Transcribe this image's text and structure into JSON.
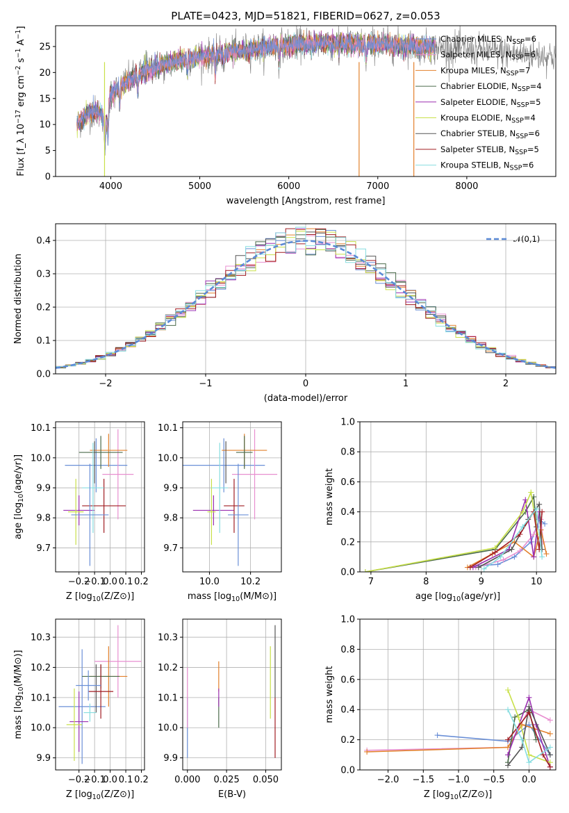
{
  "figure": {
    "title": "PLATE=0423, MJD=51821, FIBERID=0627, z=0.053"
  },
  "colors": [
    "#6a8fd7",
    "#e88fd0",
    "#e2802b",
    "#4b6b4b",
    "#9a2fb0",
    "#c8e048",
    "#555555",
    "#a01c22",
    "#86dde0"
  ],
  "chart_data": [
    {
      "id": "spectrum",
      "type": "line",
      "xlabel": "wavelength [Angstrom, rest frame]",
      "ylabel": "Flux [f_λ 10^-17 erg cm^-2 s^-1 A^-1]",
      "xlim": [
        3380,
        9000
      ],
      "ylim": [
        0,
        29
      ],
      "xticks": [
        4000,
        5000,
        6000,
        7000,
        8000
      ],
      "yticks": [
        0,
        5,
        10,
        15,
        20,
        25
      ],
      "grid": false,
      "legend_position": "right",
      "series": [
        {
          "name": "Chabrier MILES, N_SSP=6"
        },
        {
          "name": "Salpeter MILES, N_SSP=6"
        },
        {
          "name": "Kroupa MILES, N_SSP=7"
        },
        {
          "name": "Chabrier ELODIE, N_SSP=4"
        },
        {
          "name": "Salpeter ELODIE, N_SSP=5"
        },
        {
          "name": "Kroupa ELODIE, N_SSP=4"
        },
        {
          "name": "Chabrier STELIB, N_SSP=6"
        },
        {
          "name": "Salpeter STELIB, N_SSP=5"
        },
        {
          "name": "Kroupa STELIB, N_SSP=6"
        }
      ],
      "continuum": {
        "x": [
          3620,
          3700,
          3800,
          3900,
          3950,
          4000,
          4100,
          4200,
          4300,
          4400,
          4500,
          4600,
          4700,
          4800,
          4900,
          5000,
          5200,
          5400,
          5600,
          5800,
          6000,
          6200,
          6400,
          6600,
          6800,
          7000,
          7200,
          7400,
          7600,
          7800,
          8000,
          8300,
          8600,
          9000
        ],
        "y": [
          10,
          11.5,
          12.5,
          12,
          10.5,
          16,
          17,
          18.5,
          19.5,
          20.5,
          21,
          21.5,
          22,
          22.5,
          22.8,
          23,
          23.5,
          24,
          24.5,
          25,
          25.3,
          25.5,
          25.6,
          25.5,
          25.4,
          25.5,
          25.2,
          25,
          24.8,
          24.6,
          24.4,
          24.0,
          23.6,
          23.2
        ]
      }
    },
    {
      "id": "residuals",
      "type": "histogram",
      "xlabel": "(data-model)/error",
      "ylabel": "Normed distribution",
      "xlim": [
        -2.5,
        2.5
      ],
      "ylim": [
        0,
        0.45
      ],
      "xticks": [
        -2,
        -1,
        0,
        1,
        2
      ],
      "yticks": [
        0.0,
        0.1,
        0.2,
        0.3,
        0.4
      ],
      "grid": true,
      "legend": "𝒩(0,1)",
      "legend_position": "top-right",
      "bin_width": 0.1
    },
    {
      "id": "age_vs_Z",
      "type": "scatter",
      "xlabel": "Z [log10(Z/Z⊙)]",
      "ylabel": "age  [log10(age/yr)]",
      "xlim": [
        -0.35,
        0.22
      ],
      "ylim": [
        9.62,
        10.12
      ],
      "xticks": [
        -0.2,
        -0.1,
        0.0,
        0.1,
        0.2
      ],
      "yticks": [
        9.7,
        9.8,
        9.9,
        10.0,
        10.1
      ],
      "grid": true,
      "points": [
        {
          "x": -0.09,
          "y": 9.975,
          "xerr": 0.2,
          "yerr": 0.09
        },
        {
          "x": 0.05,
          "y": 9.945,
          "xerr": 0.1,
          "yerr": 0.15
        },
        {
          "x": -0.01,
          "y": 10.025,
          "xerr": 0.12,
          "yerr": 0.055
        },
        {
          "x": -0.06,
          "y": 10.018,
          "xerr": 0.14,
          "yerr": 0.055
        },
        {
          "x": -0.2,
          "y": 9.825,
          "xerr": 0.1,
          "yerr": 0.05
        },
        {
          "x": -0.22,
          "y": 9.82,
          "xerr": 0.05,
          "yerr": 0.11
        },
        {
          "x": -0.1,
          "y": 9.985,
          "xerr": 0.0,
          "yerr": 0.07
        },
        {
          "x": -0.04,
          "y": 9.84,
          "xerr": 0.14,
          "yerr": 0.09
        },
        {
          "x": -0.11,
          "y": 9.9,
          "xerr": 0.07,
          "yerr": 0.15
        },
        {
          "x": -0.13,
          "y": 9.81,
          "xerr": 0.12,
          "yerr": 0.17
        }
      ]
    },
    {
      "id": "age_vs_mass",
      "type": "scatter",
      "xlabel": "mass [log10(M/M⊙)]",
      "xlim": [
        9.87,
        10.35
      ],
      "ylim": [
        9.62,
        10.12
      ],
      "xticks": [
        10.0,
        10.2
      ],
      "yticks": [
        9.7,
        9.8,
        9.9,
        10.0,
        10.1
      ],
      "grid": true,
      "points": [
        {
          "x": 10.07,
          "y": 9.975,
          "xerr": 0.2,
          "yerr": 0.09
        },
        {
          "x": 10.22,
          "y": 9.945,
          "xerr": 0.11,
          "yerr": 0.15
        },
        {
          "x": 10.17,
          "y": 10.025,
          "xerr": 0.11,
          "yerr": 0.055
        },
        {
          "x": 10.17,
          "y": 10.018,
          "xerr": 0.04,
          "yerr": 0.055
        },
        {
          "x": 10.02,
          "y": 9.825,
          "xerr": 0.1,
          "yerr": 0.05
        },
        {
          "x": 10.01,
          "y": 9.82,
          "xerr": 0.02,
          "yerr": 0.11
        },
        {
          "x": 10.08,
          "y": 9.985,
          "xerr": 0.0,
          "yerr": 0.07
        },
        {
          "x": 10.12,
          "y": 9.84,
          "xerr": 0.05,
          "yerr": 0.09
        },
        {
          "x": 10.05,
          "y": 9.9,
          "xerr": 0.04,
          "yerr": 0.15
        },
        {
          "x": 10.14,
          "y": 9.81,
          "xerr": 0.05,
          "yerr": 0.17
        }
      ]
    },
    {
      "id": "weight_vs_age",
      "type": "line",
      "xlabel": "age  [log10(age/yr)]",
      "ylabel": "mass weight",
      "xlim": [
        6.8,
        10.35
      ],
      "ylim": [
        0,
        1.0
      ],
      "xticks": [
        7,
        8,
        9,
        10
      ],
      "yticks": [
        0.0,
        0.2,
        0.4,
        0.6,
        0.8,
        1.0
      ],
      "grid": true,
      "series_points": [
        [
          [
            8.9,
            0.04
          ],
          [
            9.3,
            0.05
          ],
          [
            9.6,
            0.1
          ],
          [
            9.9,
            0.2
          ],
          [
            10.05,
            0.35
          ],
          [
            10.15,
            0.32
          ]
        ],
        [
          [
            8.9,
            0.03
          ],
          [
            9.4,
            0.08
          ],
          [
            9.7,
            0.14
          ],
          [
            9.95,
            0.25
          ],
          [
            10.08,
            0.35
          ],
          [
            10.12,
            0.2
          ]
        ],
        [
          [
            8.75,
            0.03
          ],
          [
            9.2,
            0.12
          ],
          [
            9.6,
            0.2
          ],
          [
            9.95,
            0.1
          ],
          [
            10.08,
            0.28
          ],
          [
            10.18,
            0.12
          ]
        ],
        [
          [
            6.9,
            0.0
          ],
          [
            9.25,
            0.15
          ],
          [
            9.8,
            0.4
          ],
          [
            9.95,
            0.5
          ],
          [
            10.0,
            0.3
          ]
        ],
        [
          [
            8.85,
            0.03
          ],
          [
            9.5,
            0.15
          ],
          [
            9.8,
            0.48
          ],
          [
            9.95,
            0.1
          ],
          [
            10.05,
            0.4
          ]
        ],
        [
          [
            6.9,
            0.0
          ],
          [
            9.25,
            0.16
          ],
          [
            9.75,
            0.4
          ],
          [
            9.9,
            0.53
          ],
          [
            10.02,
            0.25
          ]
        ],
        [
          [
            8.95,
            0.03
          ],
          [
            9.55,
            0.15
          ],
          [
            9.85,
            0.35
          ],
          [
            10.05,
            0.45
          ],
          [
            10.1,
            0.15
          ]
        ],
        [
          [
            8.8,
            0.03
          ],
          [
            9.25,
            0.13
          ],
          [
            9.7,
            0.25
          ],
          [
            9.95,
            0.4
          ],
          [
            10.05,
            0.15
          ],
          [
            10.1,
            0.4
          ]
        ],
        [
          [
            9.05,
            0.02
          ],
          [
            9.35,
            0.1
          ],
          [
            9.75,
            0.3
          ],
          [
            10.0,
            0.42
          ],
          [
            10.1,
            0.1
          ]
        ]
      ]
    },
    {
      "id": "mass_vs_Z",
      "type": "scatter",
      "xlabel": "Z [log10(Z/Z⊙)]",
      "ylabel": "mass [log10(M/M⊙)]",
      "xlim": [
        -0.35,
        0.22
      ],
      "ylim": [
        9.86,
        10.36
      ],
      "xticks": [
        -0.2,
        -0.1,
        0.0,
        0.1,
        0.2
      ],
      "yticks": [
        9.9,
        10.0,
        10.1,
        10.2,
        10.3
      ],
      "grid": true,
      "points": [
        {
          "x": -0.18,
          "y": 10.07,
          "xerr": 0.15,
          "yerr": 0.19
        },
        {
          "x": 0.05,
          "y": 10.22,
          "xerr": 0.15,
          "yerr": 0.12
        },
        {
          "x": -0.01,
          "y": 10.17,
          "xerr": 0.12,
          "yerr": 0.1
        },
        {
          "x": -0.06,
          "y": 10.17,
          "xerr": 0.12,
          "yerr": 0.04
        },
        {
          "x": -0.2,
          "y": 10.02,
          "xerr": 0.06,
          "yerr": 0.1
        },
        {
          "x": -0.23,
          "y": 10.01,
          "xerr": 0.05,
          "yerr": 0.12
        },
        {
          "x": -0.09,
          "y": 10.13,
          "xerr": 0.0,
          "yerr": 0.08
        },
        {
          "x": -0.06,
          "y": 10.12,
          "xerr": 0.08,
          "yerr": 0.09
        },
        {
          "x": -0.13,
          "y": 10.05,
          "xerr": 0.04,
          "yerr": 0.03
        },
        {
          "x": -0.14,
          "y": 10.14,
          "xerr": 0.08,
          "yerr": 0.05
        }
      ]
    },
    {
      "id": "mass_vs_ebv",
      "type": "scatter",
      "xlabel": "E(B-V)",
      "xlim": [
        -0.003,
        0.06
      ],
      "ylim": [
        9.86,
        10.36
      ],
      "xticks": [
        0.0,
        0.025,
        0.05
      ],
      "xticklabels": [
        "0.000",
        "0.025",
        "0.050"
      ],
      "yticks": [
        9.9,
        10.0,
        10.1,
        10.2,
        10.3
      ],
      "grid": true,
      "points": [
        {
          "x": 0.0,
          "y": 10.0,
          "yerr": 0.1
        },
        {
          "x": 0.0,
          "y": 10.1,
          "yerr": 0.1
        },
        {
          "x": 0.02,
          "y": 10.17,
          "yerr": 0.05
        },
        {
          "x": 0.02,
          "y": 10.05,
          "yerr": 0.05
        },
        {
          "x": 0.02,
          "y": 10.1,
          "yerr": 0.03
        },
        {
          "x": 0.053,
          "y": 10.15,
          "yerr": 0.12
        },
        {
          "x": 0.056,
          "y": 10.22,
          "yerr": 0.12
        },
        {
          "x": 0.056,
          "y": 10.0,
          "yerr": 0.1
        }
      ]
    },
    {
      "id": "weight_vs_Z",
      "type": "line",
      "xlabel": "Z [log10(Z/Z⊙)]",
      "ylabel": "mass weight",
      "xlim": [
        -2.4,
        0.38
      ],
      "ylim": [
        0,
        1.0
      ],
      "xticks": [
        -2.0,
        -1.5,
        -1.0,
        -0.5,
        0.0
      ],
      "yticks": [
        0.0,
        0.2,
        0.4,
        0.6,
        0.8,
        1.0
      ],
      "grid": true,
      "series_points": [
        [
          [
            -1.3,
            0.23
          ],
          [
            -0.3,
            0.19
          ],
          [
            0.0,
            0.3
          ],
          [
            0.3,
            0.1
          ]
        ],
        [
          [
            -2.3,
            0.13
          ],
          [
            -0.3,
            0.15
          ],
          [
            0.0,
            0.4
          ],
          [
            0.3,
            0.33
          ]
        ],
        [
          [
            -2.3,
            0.12
          ],
          [
            -0.3,
            0.15
          ],
          [
            -0.1,
            0.3
          ],
          [
            0.3,
            0.24
          ]
        ],
        [
          [
            -0.3,
            0.05
          ],
          [
            -0.2,
            0.35
          ],
          [
            0.0,
            0.4
          ],
          [
            0.1,
            0.2
          ]
        ],
        [
          [
            -0.3,
            0.1
          ],
          [
            0.0,
            0.48
          ],
          [
            0.1,
            0.3
          ],
          [
            0.3,
            0.02
          ]
        ],
        [
          [
            -0.3,
            0.53
          ],
          [
            -0.15,
            0.35
          ],
          [
            0.0,
            0.1
          ],
          [
            0.3,
            0.05
          ]
        ],
        [
          [
            -0.3,
            0.03
          ],
          [
            -0.1,
            0.15
          ],
          [
            0.0,
            0.42
          ],
          [
            0.3,
            0.1
          ]
        ],
        [
          [
            -0.3,
            0.2
          ],
          [
            0.0,
            0.38
          ],
          [
            0.2,
            0.1
          ],
          [
            0.3,
            0.02
          ]
        ],
        [
          [
            -0.3,
            0.4
          ],
          [
            -0.1,
            0.2
          ],
          [
            0.0,
            0.05
          ],
          [
            0.3,
            0.15
          ]
        ]
      ]
    }
  ]
}
